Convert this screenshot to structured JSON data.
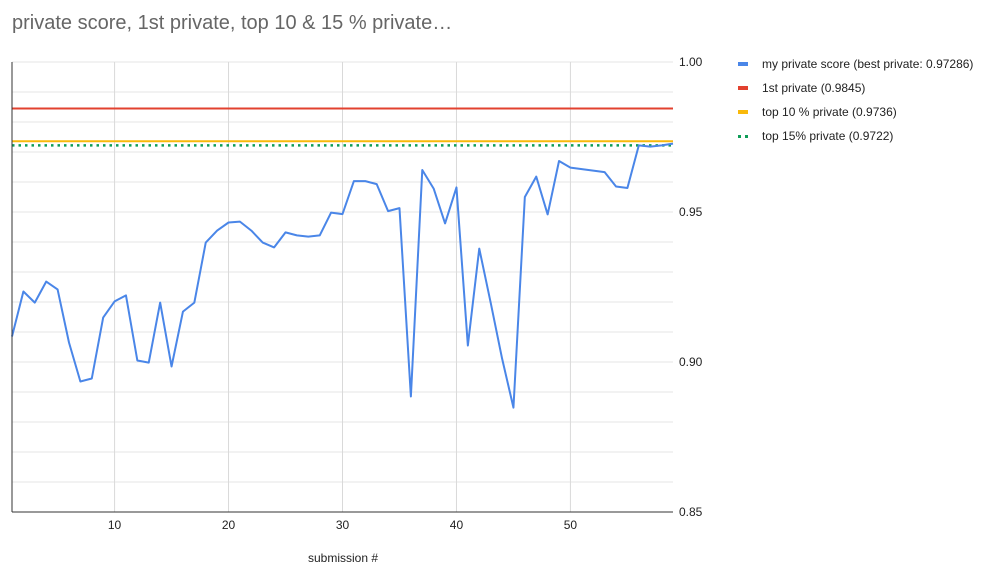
{
  "chart_data": {
    "type": "line",
    "title": "private score, 1st private, top 10 & 15 % private…",
    "xlabel": "submission #",
    "ylabel": "",
    "xlim": [
      1,
      59
    ],
    "ylim": [
      0.85,
      1.0
    ],
    "x_ticks": [
      10,
      20,
      30,
      40,
      50
    ],
    "y_ticks": [
      "0.85",
      "0.90",
      "0.95",
      "1.00"
    ],
    "grid": true,
    "legend_position": "right",
    "series": [
      {
        "name": "my private score (best private: 0.97286)",
        "color": "#4a86e8",
        "style": "solid",
        "x": [
          1,
          2,
          3,
          4,
          5,
          6,
          7,
          8,
          9,
          10,
          11,
          12,
          13,
          14,
          15,
          16,
          17,
          18,
          19,
          20,
          21,
          22,
          23,
          24,
          25,
          26,
          27,
          28,
          29,
          30,
          31,
          32,
          33,
          34,
          35,
          36,
          37,
          38,
          39,
          40,
          41,
          42,
          43,
          44,
          45,
          46,
          47,
          48,
          49,
          50,
          51,
          52,
          53,
          54,
          55,
          56,
          57,
          58,
          59
        ],
        "values": [
          0.9085,
          0.9235,
          0.9198,
          0.9268,
          0.9242,
          0.9065,
          0.8935,
          0.8945,
          0.9148,
          0.9202,
          0.9222,
          0.9005,
          0.8998,
          0.9198,
          0.8985,
          0.9168,
          0.9198,
          0.9398,
          0.9438,
          0.9465,
          0.9468,
          0.9438,
          0.9398,
          0.9382,
          0.9432,
          0.9422,
          0.9418,
          0.9422,
          0.9498,
          0.9493,
          0.9603,
          0.9603,
          0.9593,
          0.9503,
          0.9513,
          0.8885,
          0.964,
          0.9578,
          0.9462,
          0.9582,
          0.9055,
          0.9378,
          0.9198,
          0.9012,
          0.8848,
          0.955,
          0.9618,
          0.9492,
          0.967,
          0.9648,
          0.9643,
          0.9638,
          0.9633,
          0.9585,
          0.958,
          0.9722,
          0.9718,
          0.9722,
          0.9728
        ]
      },
      {
        "name": "1st private (0.9845)",
        "color": "#e2412f",
        "style": "solid",
        "constant": 0.9845
      },
      {
        "name": "top 10 % private (0.9736)",
        "color": "#f9b90b",
        "style": "solid",
        "constant": 0.9736
      },
      {
        "name": "top 15% private (0.9722)",
        "color": "#0f9d58",
        "style": "dotted",
        "constant": 0.9722
      }
    ]
  }
}
